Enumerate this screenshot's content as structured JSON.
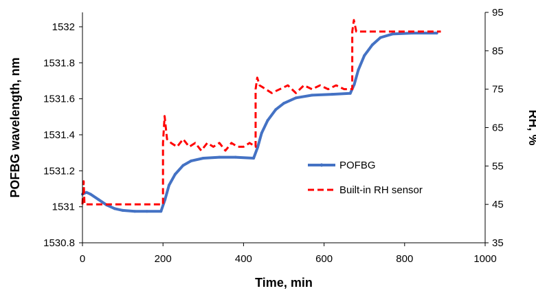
{
  "chart_data": {
    "type": "line",
    "xlabel": "Time, min",
    "ylabel_left": "POFBG wavelength, nm",
    "ylabel_right": "RH, %",
    "xlim": [
      0,
      1000
    ],
    "ylim_left": [
      1530.8,
      1532.08
    ],
    "ylim_right": [
      35,
      95
    ],
    "x_ticks": [
      "0",
      "200",
      "400",
      "600",
      "800",
      "1000"
    ],
    "y_left_ticks": [
      "1530.8",
      "1531",
      "1531.2",
      "1531.4",
      "1531.6",
      "1531.8",
      "1532"
    ],
    "y_right_ticks": [
      "35",
      "45",
      "55",
      "65",
      "75",
      "85",
      "95"
    ],
    "grid": false,
    "legend_position": "center-right",
    "series": [
      {
        "name": "POFBG",
        "axis": "left",
        "color": "#4472C4",
        "style": "solid-with-markers",
        "x": [
          0,
          10,
          20,
          40,
          60,
          80,
          100,
          130,
          160,
          195,
          205,
          215,
          230,
          250,
          270,
          300,
          340,
          380,
          425,
          435,
          445,
          460,
          480,
          500,
          530,
          570,
          620,
          665,
          675,
          685,
          700,
          720,
          740,
          770,
          820,
          880
        ],
        "y": [
          1531.07,
          1531.08,
          1531.07,
          1531.04,
          1531.01,
          1530.99,
          1530.98,
          1530.975,
          1530.975,
          1530.975,
          1531.04,
          1531.12,
          1531.18,
          1531.23,
          1531.255,
          1531.27,
          1531.275,
          1531.275,
          1531.27,
          1531.33,
          1531.41,
          1531.48,
          1531.54,
          1531.575,
          1531.605,
          1531.62,
          1531.625,
          1531.63,
          1531.68,
          1531.76,
          1531.84,
          1531.9,
          1531.94,
          1531.96,
          1531.965,
          1531.965
        ]
      },
      {
        "name": "Built-in RH sensor",
        "axis": "right",
        "color": "#FF0000",
        "style": "dashed",
        "x": [
          0,
          3,
          5,
          200,
          200,
          204,
          210,
          220,
          235,
          250,
          265,
          280,
          295,
          310,
          325,
          340,
          355,
          370,
          385,
          400,
          415,
          430,
          430,
          434,
          440,
          455,
          470,
          490,
          510,
          530,
          550,
          570,
          590,
          610,
          630,
          650,
          670,
          670,
          674,
          680,
          700,
          750,
          800,
          890
        ],
        "y": [
          45,
          51,
          45,
          45,
          61,
          68,
          62,
          61,
          60,
          62,
          60,
          61,
          59,
          61,
          60,
          61,
          59,
          61,
          60,
          60,
          61,
          60,
          75,
          78,
          76,
          75,
          74,
          75,
          76,
          74,
          76,
          75,
          76,
          75,
          76,
          75,
          75,
          90,
          93,
          90,
          90,
          90,
          90,
          90
        ]
      }
    ]
  }
}
